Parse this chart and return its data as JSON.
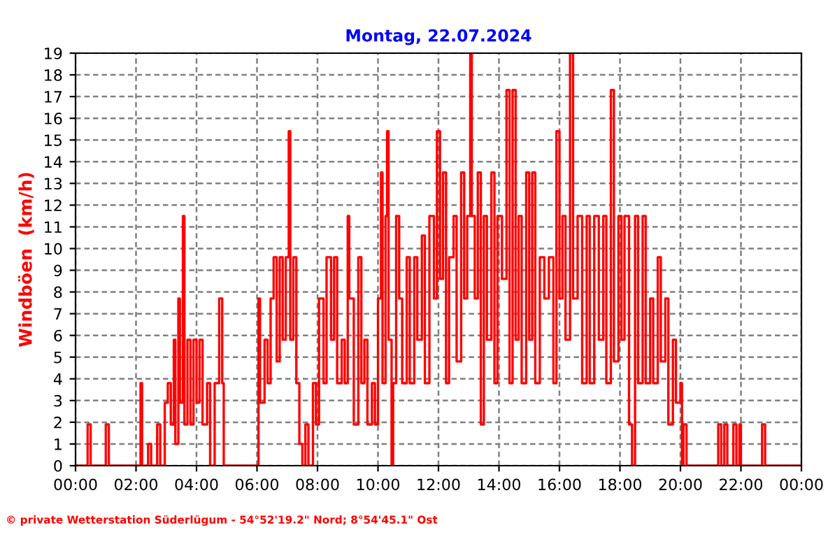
{
  "chart_data": {
    "type": "step",
    "title": "Montag, 22.07.2024",
    "ylabel": "Windböen  (km/h)",
    "annotations": [
      "© private Wetterstation Süderlügum - 54°52'19.2\" Nord; 8°54'45.1\" Ost"
    ],
    "series": [
      {
        "color": "#ff0000",
        "x": [
          0,
          0.4,
          0.5,
          1.0,
          1.1,
          2.15,
          2.2,
          2.4,
          2.5,
          2.7,
          2.8,
          2.95,
          3.05,
          3.15,
          3.25,
          3.3,
          3.4,
          3.45,
          3.55,
          3.6,
          3.7,
          3.8,
          3.9,
          4.0,
          4.1,
          4.2,
          4.35,
          4.45,
          4.6,
          4.75,
          4.85,
          4.9,
          6.0,
          6.05,
          6.1,
          6.25,
          6.35,
          6.45,
          6.55,
          6.65,
          6.75,
          6.85,
          6.95,
          7.05,
          7.1,
          7.2,
          7.3,
          7.4,
          7.5,
          7.6,
          7.7,
          7.85,
          7.95,
          8.05,
          8.2,
          8.3,
          8.45,
          8.55,
          8.65,
          8.8,
          8.9,
          9.0,
          9.05,
          9.2,
          9.35,
          9.45,
          9.55,
          9.65,
          9.8,
          9.9,
          10.0,
          10.1,
          10.15,
          10.25,
          10.3,
          10.35,
          10.45,
          10.5,
          10.6,
          10.7,
          10.8,
          10.95,
          11.05,
          11.2,
          11.3,
          11.45,
          11.55,
          11.7,
          11.85,
          11.95,
          12.05,
          12.15,
          12.25,
          12.35,
          12.5,
          12.6,
          12.75,
          12.85,
          12.95,
          13.05,
          13.1,
          13.2,
          13.3,
          13.4,
          13.5,
          13.6,
          13.75,
          13.85,
          13.95,
          14.1,
          14.25,
          14.35,
          14.45,
          14.55,
          14.65,
          14.75,
          14.9,
          15.0,
          15.1,
          15.2,
          15.35,
          15.5,
          15.65,
          15.8,
          15.9,
          16.0,
          16.1,
          16.2,
          16.35,
          16.45,
          16.6,
          16.75,
          16.9,
          17.0,
          17.15,
          17.3,
          17.45,
          17.55,
          17.7,
          17.8,
          17.95,
          18.05,
          18.15,
          18.3,
          18.4,
          18.5,
          18.6,
          18.75,
          18.85,
          19.0,
          19.1,
          19.25,
          19.35,
          19.5,
          19.6,
          19.75,
          19.85,
          20.0,
          20.05,
          20.1,
          20.2,
          21.2,
          21.25,
          21.35,
          21.45,
          21.55,
          21.75,
          21.85,
          21.95,
          22.0,
          22.7,
          22.8,
          24
        ],
        "values": [
          0,
          1.9,
          0,
          1.9,
          0,
          3.8,
          0,
          1.0,
          0,
          1.9,
          0,
          2.9,
          3.8,
          1.9,
          5.8,
          1.0,
          7.7,
          2.9,
          11.5,
          1.9,
          5.8,
          1.9,
          5.8,
          2.9,
          5.8,
          1.9,
          3.8,
          0,
          3.8,
          7.7,
          3.8,
          0,
          0,
          7.7,
          2.9,
          5.8,
          3.8,
          7.7,
          9.6,
          4.8,
          9.6,
          5.8,
          9.6,
          15.4,
          5.8,
          9.6,
          3.8,
          1.0,
          0,
          1.9,
          0,
          3.8,
          1.9,
          7.7,
          3.8,
          9.6,
          5.8,
          9.6,
          3.8,
          5.8,
          3.8,
          11.5,
          7.7,
          1.9,
          9.6,
          3.8,
          5.8,
          1.9,
          3.8,
          1.9,
          7.7,
          13.5,
          3.8,
          11.5,
          15.4,
          5.8,
          0,
          3.8,
          11.5,
          7.7,
          3.8,
          9.6,
          3.8,
          9.6,
          5.8,
          10.6,
          3.8,
          11.5,
          7.7,
          15.4,
          8.6,
          13.5,
          3.8,
          9.6,
          11.5,
          4.8,
          13.5,
          7.7,
          11.5,
          19,
          11.5,
          7.7,
          13.5,
          1.9,
          11.5,
          5.8,
          13.5,
          3.8,
          11.5,
          8.6,
          17.3,
          3.8,
          17.3,
          5.8,
          11.5,
          3.8,
          13.5,
          5.8,
          13.5,
          3.8,
          9.6,
          7.7,
          9.6,
          3.8,
          15.4,
          7.7,
          11.5,
          5.8,
          19,
          7.7,
          11.5,
          3.8,
          11.5,
          3.8,
          11.5,
          5.8,
          11.5,
          3.8,
          17.3,
          4.8,
          11.5,
          5.8,
          11.5,
          1.9,
          0,
          11.5,
          3.8,
          11.5,
          3.8,
          7.7,
          3.8,
          9.6,
          4.8,
          7.7,
          1.9,
          5.8,
          2.9,
          3.8,
          0,
          1.9,
          0,
          0,
          1.9,
          0,
          1.9,
          0,
          1.9,
          0,
          1.9,
          0,
          1.9,
          0,
          0
        ]
      }
    ],
    "xlim": [
      0,
      24
    ],
    "xticks": [
      {
        "value": 0,
        "label": "00:00"
      },
      {
        "value": 2,
        "label": "02:00"
      },
      {
        "value": 4,
        "label": "04:00"
      },
      {
        "value": 6,
        "label": "06:00"
      },
      {
        "value": 8,
        "label": "08:00"
      },
      {
        "value": 10,
        "label": "10:00"
      },
      {
        "value": 12,
        "label": "12:00"
      },
      {
        "value": 14,
        "label": "14:00"
      },
      {
        "value": 16,
        "label": "16:00"
      },
      {
        "value": 18,
        "label": "18:00"
      },
      {
        "value": 20,
        "label": "20:00"
      },
      {
        "value": 22,
        "label": "22:00"
      },
      {
        "value": 24,
        "label": "00:00"
      }
    ],
    "ylim": [
      0,
      19
    ],
    "yticks": [
      0,
      1,
      2,
      3,
      4,
      5,
      6,
      7,
      8,
      9,
      10,
      11,
      12,
      13,
      14,
      15,
      16,
      17,
      18,
      19
    ],
    "grid": true,
    "legend": false
  }
}
